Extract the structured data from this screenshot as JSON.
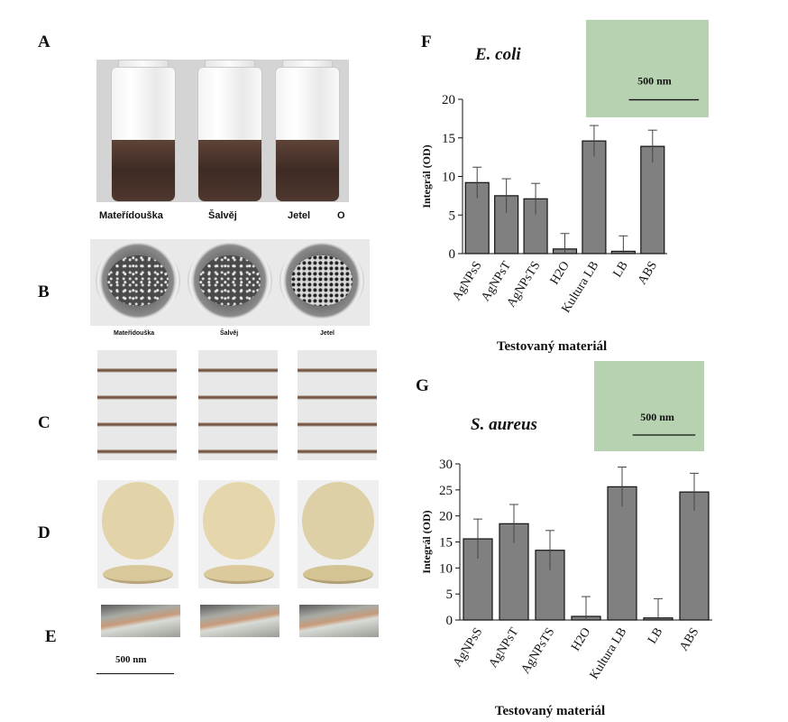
{
  "panel_letters": [
    "A",
    "B",
    "C",
    "D",
    "E",
    "F",
    "G"
  ],
  "panel_a": {
    "labels": [
      "Mateřídouška",
      "Šalvěj",
      "Jetel",
      "O"
    ]
  },
  "panel_b": {
    "labels": [
      "Mateřídouška",
      "Šalvěj",
      "Jetel"
    ]
  },
  "panel_e": {
    "scale_label": "500 nm"
  },
  "chart_data": [
    {
      "type": "bar",
      "panel": "F",
      "title": "E. coli",
      "inset_scale_label": "500 nm",
      "categories": [
        "AgNPsS",
        "AgNPsT",
        "AgNPsTS",
        "H2O",
        "Kultura LB",
        "LB",
        "ABS"
      ],
      "values": [
        9.2,
        7.5,
        7.1,
        0.6,
        14.6,
        0.3,
        13.9
      ],
      "error": [
        2.0,
        2.2,
        2.0,
        2.0,
        2.0,
        2.0,
        2.1
      ],
      "ylabel": "Integrál (OD)",
      "xlabel": "Testovaný materiál",
      "ylim": [
        0,
        20
      ],
      "yticks": [
        0,
        5,
        10,
        15,
        20
      ],
      "bar_color": "#808080"
    },
    {
      "type": "bar",
      "panel": "G",
      "title": "S. aureus",
      "inset_scale_label": "500 nm",
      "categories": [
        "AgNPsS",
        "AgNPsT",
        "AgNPsTS",
        "H2O",
        "Kultura LB",
        "LB",
        "ABS"
      ],
      "values": [
        15.6,
        18.5,
        13.4,
        0.7,
        25.6,
        0.4,
        24.6
      ],
      "error": [
        3.8,
        3.7,
        3.8,
        3.8,
        3.8,
        3.7,
        3.6
      ],
      "ylabel": "Integrál (OD)",
      "xlabel": "Testovaný materiál",
      "ylim": [
        0,
        30
      ],
      "yticks": [
        0,
        5,
        10,
        15,
        20,
        25,
        30
      ],
      "bar_color": "#808080"
    }
  ]
}
